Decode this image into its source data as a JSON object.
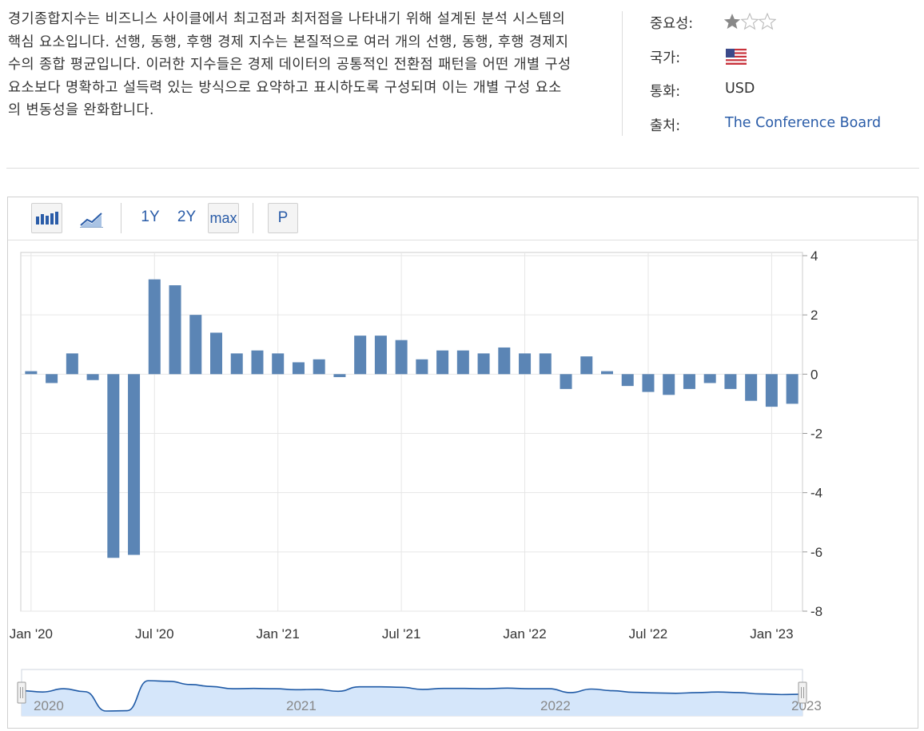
{
  "description": "경기종합지수는 비즈니스 사이클에서 최고점과 최저점을 나타내기 위해 설계된 분석 시스템의 핵심 요소입니다. 선행, 동행, 후행 경제 지수는 본질적으로 여러 개의 선행, 동행, 후행 경제지수의 종합 평균입니다. 이러한 지수들은 경제 데이터의 공통적인 전환점 패턴을 어떤 개별 구성 요소보다 명확하고 설득력 있는 방식으로 요약하고 표시하도록 구성되며 이는 개별 구성 요소의 변동성을 완화합니다.",
  "meta": {
    "importance_label": "중요성:",
    "importance_stars": 1,
    "importance_max": 3,
    "country_label": "국가:",
    "country_flag": "us-flag-icon",
    "currency_label": "통화:",
    "currency_value": "USD",
    "source_label": "출처:",
    "source_value": "The Conference Board"
  },
  "toolbar": {
    "bar_icon": "bar-chart-icon",
    "line_icon": "line-chart-icon",
    "range_1y": "1Y",
    "range_2y": "2Y",
    "range_max": "max",
    "active_range": "max",
    "p_label": "P"
  },
  "colors": {
    "bar": "#5b85b5",
    "navigator_line": "#1f5aa6",
    "navigator_fill": "#d5e6fa",
    "link": "#2a5ca8"
  },
  "chart_data": {
    "type": "bar",
    "categories": [
      "Jan '20",
      "Feb '20",
      "Mar '20",
      "Apr '20",
      "May '20",
      "Jun '20",
      "Jul '20",
      "Aug '20",
      "Sep '20",
      "Oct '20",
      "Nov '20",
      "Dec '20",
      "Jan '21",
      "Feb '21",
      "Mar '21",
      "Apr '21",
      "May '21",
      "Jun '21",
      "Jul '21",
      "Aug '21",
      "Sep '21",
      "Oct '21",
      "Nov '21",
      "Dec '21",
      "Jan '22",
      "Feb '22",
      "Mar '22",
      "Apr '22",
      "May '22",
      "Jun '22",
      "Jul '22",
      "Aug '22",
      "Sep '22",
      "Oct '22",
      "Nov '22",
      "Dec '22",
      "Jan '23",
      "Feb '23"
    ],
    "values": [
      0.1,
      -0.3,
      0.7,
      -0.2,
      -6.2,
      -6.1,
      3.2,
      3.0,
      2.0,
      1.4,
      0.7,
      0.8,
      0.7,
      0.4,
      0.5,
      -0.1,
      1.3,
      1.3,
      1.15,
      0.5,
      0.8,
      0.8,
      0.7,
      0.9,
      0.7,
      0.7,
      -0.5,
      0.6,
      0.1,
      -0.4,
      -0.6,
      -0.7,
      -0.5,
      -0.3,
      -0.5,
      -0.9,
      -1.1,
      -1.0
    ],
    "x_tick_labels": [
      "Jan '20",
      "Jul '20",
      "Jan '21",
      "Jul '21",
      "Jan '22",
      "Jul '22",
      "Jan '23"
    ],
    "y_ticks": [
      4,
      2,
      0,
      -2,
      -4,
      -6,
      -8
    ],
    "ylim": [
      -8,
      4
    ],
    "y_axis_side": "right",
    "grid": true,
    "navigator_labels": [
      "2020",
      "2021",
      "2022",
      "2023"
    ]
  }
}
